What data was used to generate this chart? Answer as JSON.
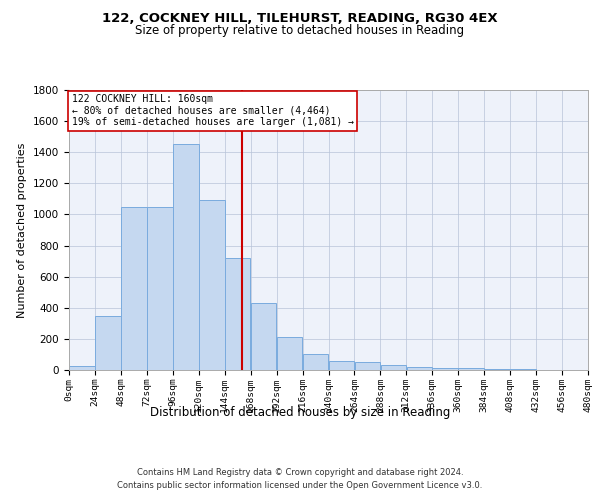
{
  "title1": "122, COCKNEY HILL, TILEHURST, READING, RG30 4EX",
  "title2": "Size of property relative to detached houses in Reading",
  "xlabel": "Distribution of detached houses by size in Reading",
  "ylabel": "Number of detached properties",
  "footer1": "Contains HM Land Registry data © Crown copyright and database right 2024.",
  "footer2": "Contains public sector information licensed under the Open Government Licence v3.0.",
  "annotation_line1": "122 COCKNEY HILL: 160sqm",
  "annotation_line2": "← 80% of detached houses are smaller (4,464)",
  "annotation_line3": "19% of semi-detached houses are larger (1,081) →",
  "property_size": 160,
  "bin_edges": [
    0,
    24,
    48,
    72,
    96,
    120,
    144,
    168,
    192,
    216,
    240,
    264,
    288,
    312,
    336,
    360,
    384,
    408,
    432,
    456,
    480
  ],
  "bar_values": [
    25,
    345,
    1050,
    1050,
    1450,
    1090,
    720,
    430,
    210,
    100,
    60,
    50,
    35,
    20,
    15,
    15,
    5,
    5,
    2,
    1
  ],
  "bar_color": "#c5d8f0",
  "bar_edge_color": "#7aabde",
  "vline_color": "#cc0000",
  "vline_x": 160,
  "annotation_box_color": "#ffffff",
  "annotation_box_edge": "#cc0000",
  "background_color": "#eef2fa",
  "ylim": [
    0,
    1800
  ],
  "yticks": [
    0,
    200,
    400,
    600,
    800,
    1000,
    1200,
    1400,
    1600,
    1800
  ],
  "title1_fontsize": 9.5,
  "title2_fontsize": 8.5,
  "ylabel_fontsize": 8,
  "xlabel_fontsize": 8.5,
  "xtick_fontsize": 6.8,
  "ytick_fontsize": 7.5,
  "footer_fontsize": 6.0,
  "ann_fontsize": 7.0
}
